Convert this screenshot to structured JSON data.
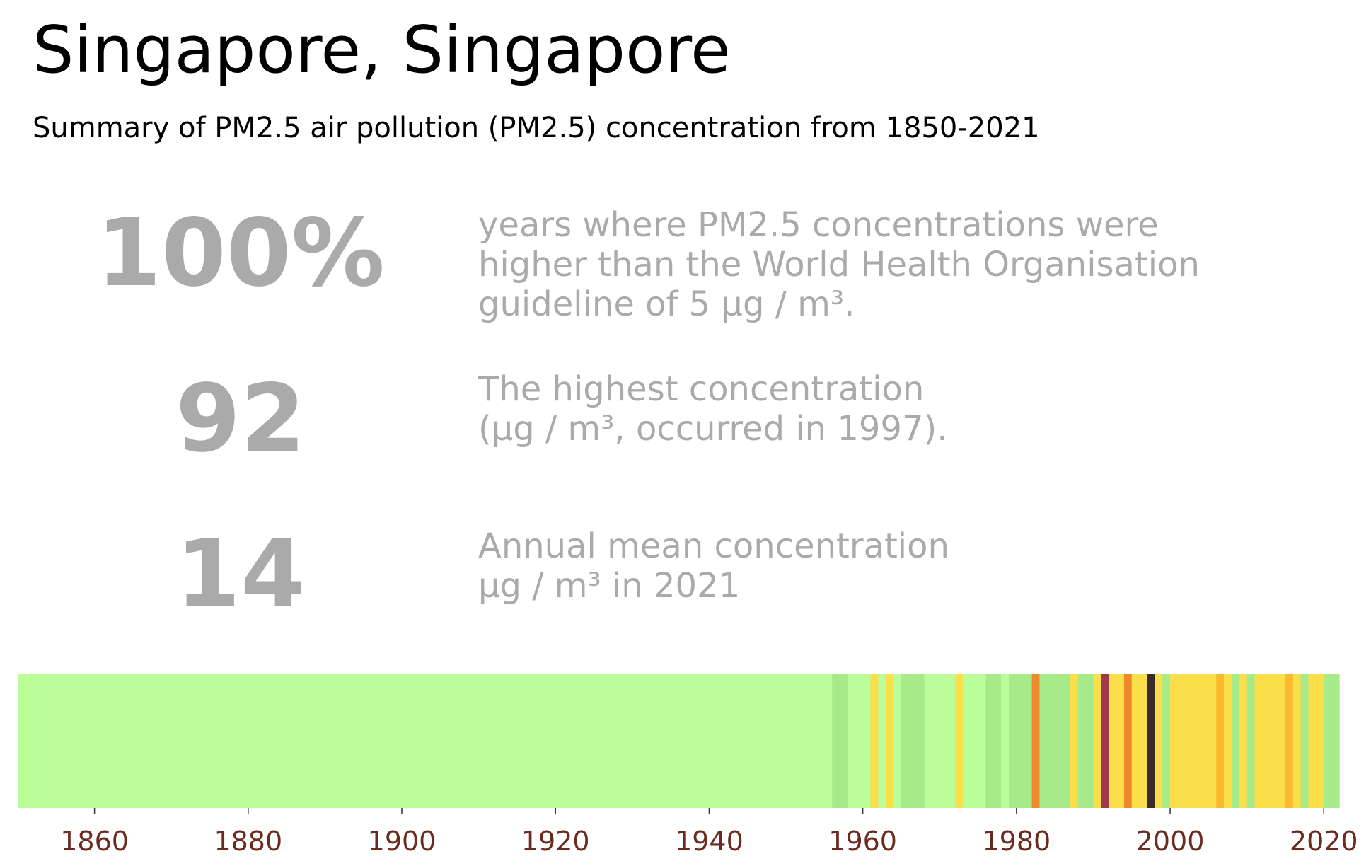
{
  "header": {
    "title": "Singapore, Singapore",
    "subtitle": "Summary of PM2.5 air pollution (PM2.5) concentration from 1850-2021"
  },
  "stats": [
    {
      "value": "100%",
      "lines": [
        "years where PM2.5 concentrations were",
        "higher than the World Health Organisation",
        "guideline of 5 μg / m³."
      ]
    },
    {
      "value": "92",
      "lines": [
        "The highest concentration",
        "(μg / m³, occurred in 1997)."
      ]
    },
    {
      "value": "14",
      "lines": [
        "Annual mean concentration",
        "μg / m³ in 2021"
      ]
    }
  ],
  "colors": {
    "stat_text": "#aaaaaa",
    "tick_label": "#6b2a1e",
    "light_green": "#bbfd98",
    "green": "#a6ea8a",
    "yellow": "#fadf4a",
    "amber": "#fbb930",
    "orange": "#ef8a2c",
    "red": "#a03a48",
    "dark": "#3a2a28"
  },
  "chart_data": {
    "type": "heatmap",
    "x_range": [
      1850,
      2022
    ],
    "xticks": [
      1860,
      1880,
      1900,
      1920,
      1940,
      1960,
      1980,
      2000,
      2020
    ],
    "segments": [
      {
        "start": 1850,
        "end": 1956,
        "color": "#bbfd98"
      },
      {
        "start": 1956,
        "end": 1958,
        "color": "#a6ea8a"
      },
      {
        "start": 1958,
        "end": 1961,
        "color": "#bbfd98"
      },
      {
        "start": 1961,
        "end": 1962,
        "color": "#fadf4a"
      },
      {
        "start": 1962,
        "end": 1963,
        "color": "#bbfd98"
      },
      {
        "start": 1963,
        "end": 1964,
        "color": "#fadf4a"
      },
      {
        "start": 1964,
        "end": 1965,
        "color": "#bbfd98"
      },
      {
        "start": 1965,
        "end": 1968,
        "color": "#a6ea8a"
      },
      {
        "start": 1968,
        "end": 1972,
        "color": "#bbfd98"
      },
      {
        "start": 1972,
        "end": 1973,
        "color": "#fadf4a"
      },
      {
        "start": 1973,
        "end": 1976,
        "color": "#bbfd98"
      },
      {
        "start": 1976,
        "end": 1978,
        "color": "#a6ea8a"
      },
      {
        "start": 1978,
        "end": 1979,
        "color": "#bbfd98"
      },
      {
        "start": 1979,
        "end": 1982,
        "color": "#a6ea8a"
      },
      {
        "start": 1982,
        "end": 1983,
        "color": "#ef8a2c"
      },
      {
        "start": 1983,
        "end": 1987,
        "color": "#a6ea8a"
      },
      {
        "start": 1987,
        "end": 1988,
        "color": "#fadf4a"
      },
      {
        "start": 1988,
        "end": 1990,
        "color": "#a6ea8a"
      },
      {
        "start": 1990,
        "end": 1991,
        "color": "#fadf4a"
      },
      {
        "start": 1991,
        "end": 1992,
        "color": "#a03a48"
      },
      {
        "start": 1992,
        "end": 1994,
        "color": "#fadf4a"
      },
      {
        "start": 1994,
        "end": 1995,
        "color": "#ef8a2c"
      },
      {
        "start": 1995,
        "end": 1997,
        "color": "#fadf4a"
      },
      {
        "start": 1997,
        "end": 1998,
        "color": "#3a2a28"
      },
      {
        "start": 1998,
        "end": 1999,
        "color": "#fadf4a"
      },
      {
        "start": 1999,
        "end": 2000,
        "color": "#a6ea8a"
      },
      {
        "start": 2000,
        "end": 2006,
        "color": "#fadf4a"
      },
      {
        "start": 2006,
        "end": 2007,
        "color": "#fbb930"
      },
      {
        "start": 2007,
        "end": 2008,
        "color": "#fadf4a"
      },
      {
        "start": 2008,
        "end": 2009,
        "color": "#a6ea8a"
      },
      {
        "start": 2009,
        "end": 2010,
        "color": "#fadf4a"
      },
      {
        "start": 2010,
        "end": 2011,
        "color": "#a6ea8a"
      },
      {
        "start": 2011,
        "end": 2015,
        "color": "#fadf4a"
      },
      {
        "start": 2015,
        "end": 2016,
        "color": "#fbb930"
      },
      {
        "start": 2016,
        "end": 2017,
        "color": "#fadf4a"
      },
      {
        "start": 2017,
        "end": 2018,
        "color": "#a6ea8a"
      },
      {
        "start": 2018,
        "end": 2020,
        "color": "#fadf4a"
      },
      {
        "start": 2020,
        "end": 2022,
        "color": "#a6ea8a"
      }
    ]
  }
}
